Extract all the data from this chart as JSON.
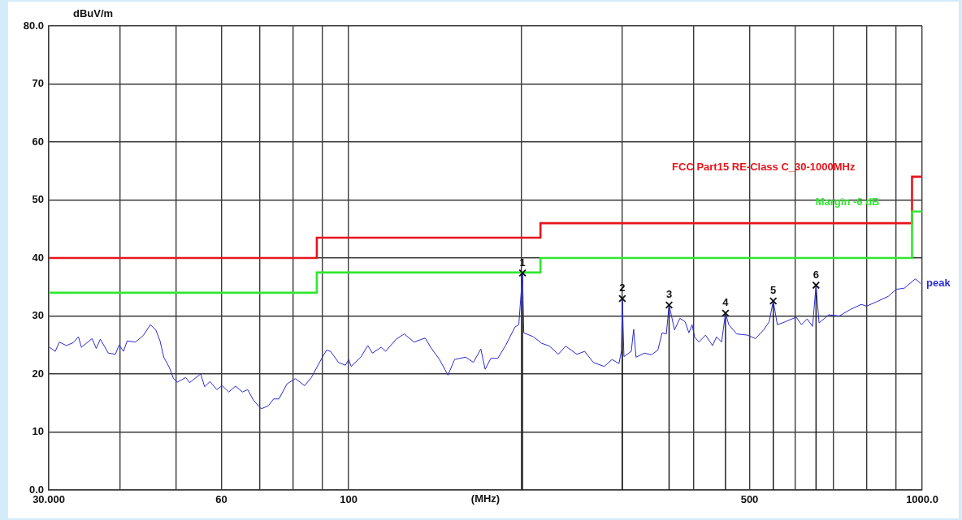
{
  "chart_data": {
    "type": "line",
    "xlabel": "(MHz)",
    "ylabel": "dBuV/m",
    "log": "x",
    "grid": true,
    "xlim": [
      30,
      1000
    ],
    "xticks": [
      {
        "value": 30,
        "label": "30.000"
      },
      {
        "value": 40,
        "label": null
      },
      {
        "value": 50,
        "label": null
      },
      60,
      {
        "value": 70,
        "label": null
      },
      {
        "value": 80,
        "label": null
      },
      {
        "value": 90,
        "label": null
      },
      100,
      {
        "value": 200,
        "label": null
      },
      {
        "value": 300,
        "label": null
      },
      {
        "value": 400,
        "label": null
      },
      500,
      {
        "value": 600,
        "label": null
      },
      {
        "value": 700,
        "label": null
      },
      {
        "value": 800,
        "label": null
      },
      {
        "value": 900,
        "label": null
      },
      {
        "value": 1000,
        "label": "1000.0"
      }
    ],
    "ylim": [
      0,
      80
    ],
    "yticks": [
      {
        "value": 0,
        "label": "0.0"
      },
      10,
      20,
      30,
      40,
      50,
      60,
      70,
      {
        "value": 80,
        "label": "80.0"
      }
    ],
    "series": [
      {
        "name": "FCC Part15 RE-Class C_30-1000MHz",
        "type": "step",
        "color": "#e8141c",
        "x": [
          30,
          88,
          216,
          960,
          1000
        ],
        "values": [
          40,
          43.5,
          46,
          54,
          54
        ]
      },
      {
        "name": "Margin -6 dB",
        "type": "step",
        "color": "#2ee82e",
        "x": [
          30,
          88,
          216,
          960,
          1000
        ],
        "values": [
          34,
          37.5,
          40,
          48,
          48
        ]
      },
      {
        "name": "peak",
        "color": "#2a2ad2",
        "x": [
          30.1,
          30.8,
          31.3,
          32.2,
          33.1,
          33.8,
          34.2,
          35.7,
          36.3,
          36.9,
          38.1,
          39.2,
          39.8,
          40.5,
          41.1,
          42.5,
          43.9,
          45.1,
          46.1,
          46.9,
          47.6,
          48.7,
          49.5,
          50.3,
          52.0,
          52.8,
          55.2,
          56.1,
          57.3,
          58.9,
          60.2,
          61.8,
          63.5,
          65.3,
          66.7,
          68.2,
          70.4,
          72.4,
          74.0,
          75.6,
          78.1,
          80.7,
          83.8,
          86.1,
          90.0,
          91.5,
          93.0,
          96.0,
          98.7,
          100,
          101,
          105,
          108,
          110,
          114,
          116,
          121,
          125,
          130,
          136,
          139,
          144,
          149,
          153,
          160,
          165,
          170,
          173,
          177,
          182,
          188,
          195,
          198,
          201,
          202,
          210,
          217,
          224,
          232,
          239,
          250,
          258,
          267,
          279,
          288,
          296,
          299,
          300,
          302,
          311,
          314,
          317,
          328,
          337,
          346,
          352,
          358,
          362,
          370,
          378,
          386,
          392,
          397,
          401,
          408,
          419,
          431,
          438,
          447,
          454,
          460,
          475,
          496,
          512,
          529,
          541,
          550,
          559,
          577,
          603,
          616,
          630,
          644,
          653,
          661,
          687,
          717,
          749,
          783,
          800,
          835,
          873,
          901,
          931,
          973,
          994
        ],
        "values": [
          24.6,
          23.9,
          25.5,
          24.9,
          25.4,
          26.4,
          24.6,
          26.1,
          24.4,
          26.0,
          23.6,
          23.4,
          25.0,
          23.9,
          25.7,
          25.5,
          26.7,
          28.5,
          27.6,
          25.7,
          22.9,
          21.1,
          19.2,
          18.6,
          19.4,
          18.5,
          20.0,
          17.8,
          18.7,
          17.3,
          18.0,
          16.9,
          17.9,
          16.9,
          17.3,
          15.5,
          14.0,
          14.5,
          15.7,
          15.7,
          18.3,
          19.2,
          18.0,
          19.4,
          22.9,
          24.1,
          23.9,
          22.0,
          21.5,
          22.5,
          21.3,
          22.9,
          24.9,
          23.6,
          24.6,
          23.9,
          26.0,
          26.9,
          25.5,
          26.2,
          24.6,
          22.5,
          19.8,
          22.5,
          22.9,
          22.0,
          24.3,
          20.8,
          22.7,
          22.7,
          25.0,
          28.1,
          28.5,
          37.4,
          27.1,
          26.4,
          25.3,
          24.8,
          23.4,
          24.8,
          23.4,
          23.9,
          22.0,
          21.3,
          22.5,
          21.8,
          24.0,
          33.0,
          23.0,
          23.9,
          27.7,
          22.9,
          23.6,
          23.3,
          24.1,
          27.1,
          26.9,
          31.9,
          27.6,
          29.6,
          29.0,
          27.1,
          28.5,
          26.4,
          25.5,
          26.7,
          24.9,
          26.4,
          25.5,
          30.5,
          28.5,
          26.9,
          26.7,
          26.1,
          27.6,
          29.0,
          32.6,
          28.5,
          29.0,
          29.8,
          28.5,
          29.5,
          28.2,
          35.3,
          28.8,
          30.2,
          30.0,
          31.1,
          32.0,
          31.7,
          32.5,
          33.4,
          34.6,
          34.8,
          36.4,
          35.6
        ]
      },
      {
        "type": "lollipop",
        "color": "#111111",
        "marker": "cross",
        "x": [
          201,
          300,
          362,
          454,
          550,
          653
        ],
        "values": [
          37.4,
          33.0,
          31.9,
          30.5,
          32.6,
          35.3
        ]
      }
    ],
    "annotations": [
      {
        "text": "1",
        "x": 201,
        "y": 37.4
      },
      {
        "text": "2",
        "x": 300,
        "y": 33.0
      },
      {
        "text": "3",
        "x": 362,
        "y": 31.9
      },
      {
        "text": "4",
        "x": 454,
        "y": 30.5
      },
      {
        "text": "5",
        "x": 550,
        "y": 32.6
      },
      {
        "text": "6",
        "x": 653,
        "y": 35.3
      }
    ]
  }
}
